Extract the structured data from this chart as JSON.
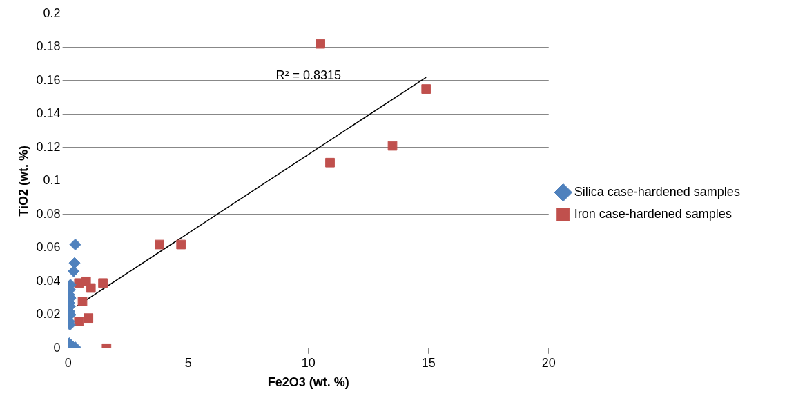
{
  "chart_data": {
    "type": "scatter",
    "xlabel": "Fe2O3 (wt. %)",
    "ylabel": "TiO2 (wt. %)",
    "xlim": [
      0,
      20
    ],
    "xticks": [
      0,
      5,
      10,
      15,
      20
    ],
    "ylim": [
      0,
      0.2
    ],
    "yticks": [
      0,
      0.02,
      0.04,
      0.06,
      0.08,
      0.1,
      0.12,
      0.14,
      0.16,
      0.18,
      0.2
    ],
    "grid": "y",
    "legend": "right",
    "annotations": [
      "R² = 0.8315"
    ],
    "series": [
      {
        "name": "Silica case-hardened samples",
        "color": "#4f81bd",
        "marker": "diamond",
        "x": [
          0.3,
          0.27,
          0.23,
          0.1,
          0.08,
          0.05,
          0.1,
          0.05,
          0.08,
          0.05,
          0.1,
          0.05,
          0.08,
          0.05,
          0.3
        ],
        "values": [
          0.062,
          0.051,
          0.046,
          0.038,
          0.035,
          0.032,
          0.03,
          0.027,
          0.025,
          0.022,
          0.02,
          0.016,
          0.014,
          0.003,
          0.0005
        ]
      },
      {
        "name": "Iron case-hardened samples",
        "color": "#c0504d",
        "marker": "square",
        "x": [
          10.5,
          14.9,
          13.5,
          10.9,
          3.8,
          4.7,
          1.6,
          0.45,
          0.75,
          1.45,
          0.95,
          0.6,
          0.45,
          0.85
        ],
        "values": [
          0.182,
          0.155,
          0.121,
          0.111,
          0.062,
          0.062,
          0,
          0.039,
          0.04,
          0.039,
          0.036,
          0.028,
          0.016,
          0.018
        ]
      },
      {
        "type": "line",
        "color": "#000000",
        "marker": "none",
        "x": [
          0.35,
          14.9
        ],
        "values": [
          0.025,
          0.162
        ]
      }
    ]
  }
}
